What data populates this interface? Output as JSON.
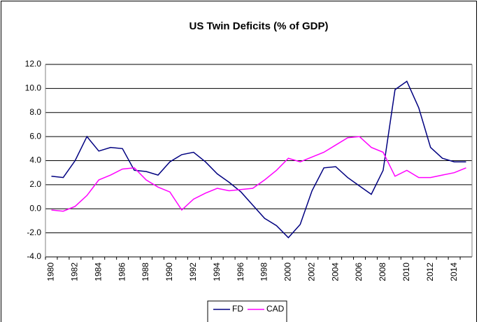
{
  "chart_data": {
    "type": "line",
    "title": "US Twin Deficits (% of GDP)",
    "categories": [
      "1980",
      null,
      "1982",
      null,
      "1984",
      null,
      "1986",
      null,
      "1988",
      null,
      "1990",
      null,
      "1992",
      null,
      "1994",
      null,
      "1996",
      null,
      "1998",
      null,
      "2000",
      null,
      "2002",
      null,
      "2004",
      null,
      "2006",
      null,
      "2008",
      null,
      "2010",
      null,
      "2012",
      null,
      "2014",
      null
    ],
    "series": [
      {
        "name": "FD",
        "color": "#000080",
        "values": [
          2.7,
          2.6,
          4.0,
          6.0,
          4.8,
          5.1,
          5.0,
          3.2,
          3.1,
          2.8,
          3.9,
          4.5,
          4.7,
          3.9,
          2.9,
          2.2,
          1.4,
          0.3,
          -0.8,
          -1.4,
          -2.4,
          -1.3,
          1.5,
          3.4,
          3.5,
          2.6,
          1.9,
          1.2,
          3.2,
          9.9,
          10.6,
          8.4,
          5.1,
          4.2,
          3.9,
          3.9
        ]
      },
      {
        "name": "CAD",
        "color": "#ff00ff",
        "values": [
          -0.1,
          -0.2,
          0.2,
          1.1,
          2.4,
          2.8,
          3.3,
          3.4,
          2.4,
          1.8,
          1.4,
          -0.1,
          0.8,
          1.3,
          1.7,
          1.5,
          1.6,
          1.7,
          2.4,
          3.2,
          4.2,
          3.9,
          4.3,
          4.7,
          5.3,
          5.9,
          6.0,
          5.1,
          4.7,
          2.7,
          3.2,
          2.6,
          2.6,
          2.8,
          3.0,
          3.4
        ]
      }
    ],
    "ylim": [
      -4,
      12
    ],
    "yticks": [
      {
        "value": -4,
        "label": "-4.0"
      },
      {
        "value": -2,
        "label": "-2.0"
      },
      {
        "value": 0,
        "label": "0.0"
      },
      {
        "value": 2,
        "label": "2.0"
      },
      {
        "value": 4,
        "label": "4.0"
      },
      {
        "value": 6,
        "label": "6.0"
      },
      {
        "value": 8,
        "label": "8.0"
      },
      {
        "value": 10,
        "label": "10.0"
      },
      {
        "value": 12,
        "label": "12.0"
      }
    ],
    "grid": true,
    "legend": "bottom"
  }
}
